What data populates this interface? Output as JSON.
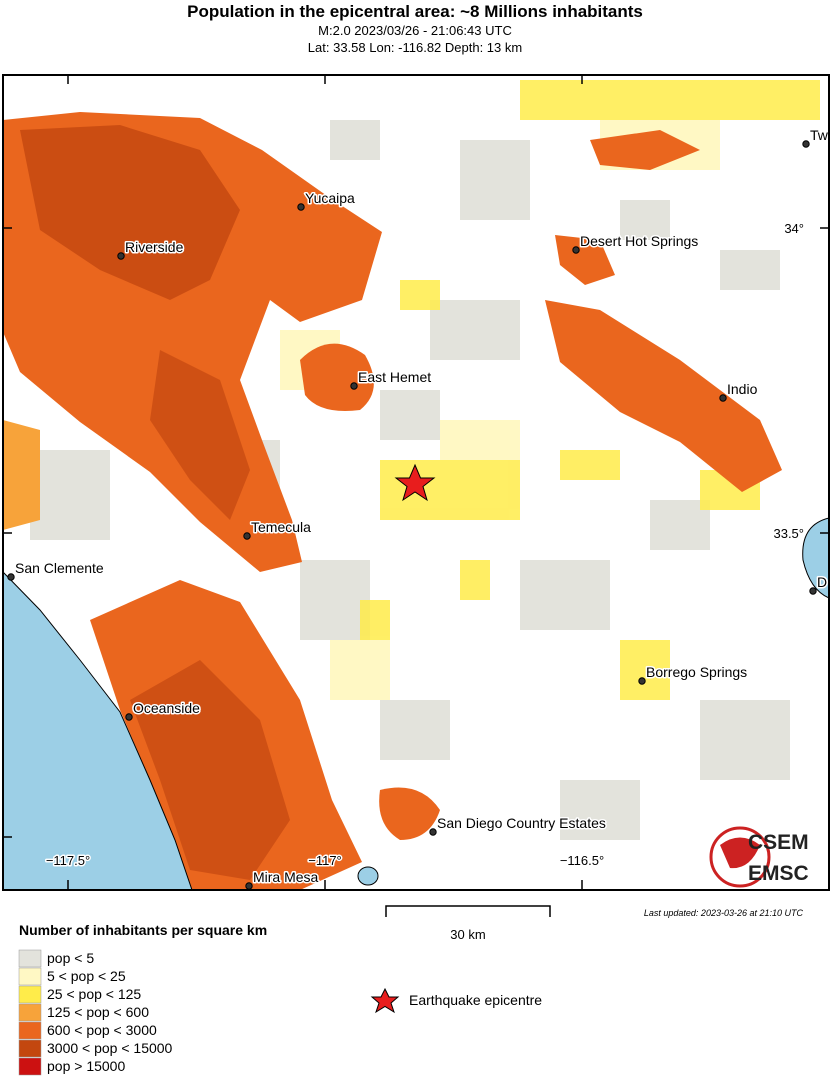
{
  "header": {
    "title": "Population in the epicentral area: ~8 Millions inhabitants",
    "line1": "M:2.0 2023/03/26 - 21:06:43 UTC",
    "line2": "Lat: 33.58 Lon: -116.82 Depth: 13 km"
  },
  "map": {
    "cities": [
      "Yucaipa",
      "Riverside",
      "Desert Hot Springs",
      "Tw",
      "East Hemet",
      "Indio",
      "Temecula",
      "San Clemente",
      "D",
      "Borrego Springs",
      "Oceanside",
      "San Diego Country Estates",
      "Mira Mesa"
    ],
    "lat_labels": [
      "34°",
      "33.5°"
    ],
    "lon_labels": [
      "−117.5°",
      "−117°",
      "−116.5°"
    ],
    "scale": "30 km",
    "updated": "Last updated: 2023-03-26 at 21:10 UTC",
    "logo": [
      "CSEM",
      "EMSC"
    ]
  },
  "legend": {
    "title": "Number of inhabitants per square km",
    "items": [
      {
        "label": "pop < 5",
        "color": "#e3e3dc"
      },
      {
        "label": "5 < pop < 25",
        "color": "#fff8c4"
      },
      {
        "label": "25 < pop < 125",
        "color": "#ffec4a"
      },
      {
        "label": "125 < pop < 600",
        "color": "#f7a33a"
      },
      {
        "label": "600 < pop < 3000",
        "color": "#ea661e"
      },
      {
        "label": "3000 < pop < 15000",
        "color": "#c3470f"
      },
      {
        "label": "pop > 15000",
        "color": "#cc1111"
      }
    ],
    "epicentre": "Earthquake epicentre"
  }
}
